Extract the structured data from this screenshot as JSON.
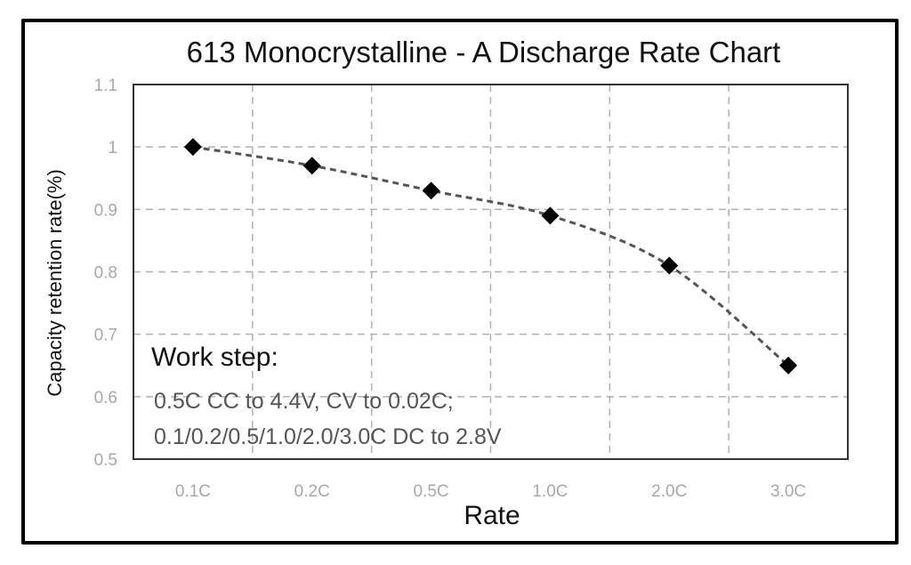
{
  "chart_data": {
    "type": "line",
    "title": "613 Monocrystalline - A Discharge Rate Chart",
    "xlabel": "Rate",
    "ylabel": "Capacity retention rate(%)",
    "categories": [
      "0.1C",
      "0.2C",
      "0.5C",
      "1.0C",
      "2.0C",
      "3.0C"
    ],
    "series": [
      {
        "name": "Capacity retention",
        "values": [
          1.0,
          0.97,
          0.93,
          0.89,
          0.81,
          0.65
        ],
        "marker": "diamond",
        "line_style": "dashed",
        "color": "#000000"
      }
    ],
    "ylim": [
      0.5,
      1.1
    ],
    "yticks": [
      "1.1",
      "1",
      "0.9",
      "0.8",
      "0.7",
      "0.6",
      "0.5"
    ],
    "ytick_values": [
      1.1,
      1.0,
      0.9,
      0.8,
      0.7,
      0.6,
      0.5
    ],
    "grid": true,
    "annotation": {
      "heading": "Work step:",
      "lines": [
        "0.5C CC to 4.4V, CV to 0.02C;",
        "0.1/0.2/0.5/1.0/2.0/3.0C DC to 2.8V"
      ]
    }
  },
  "colors": {
    "frame": "#000000",
    "grid": "#b0b0b0",
    "tick_label": "#a8a8a8",
    "line": "#555555",
    "marker": "#000000"
  }
}
